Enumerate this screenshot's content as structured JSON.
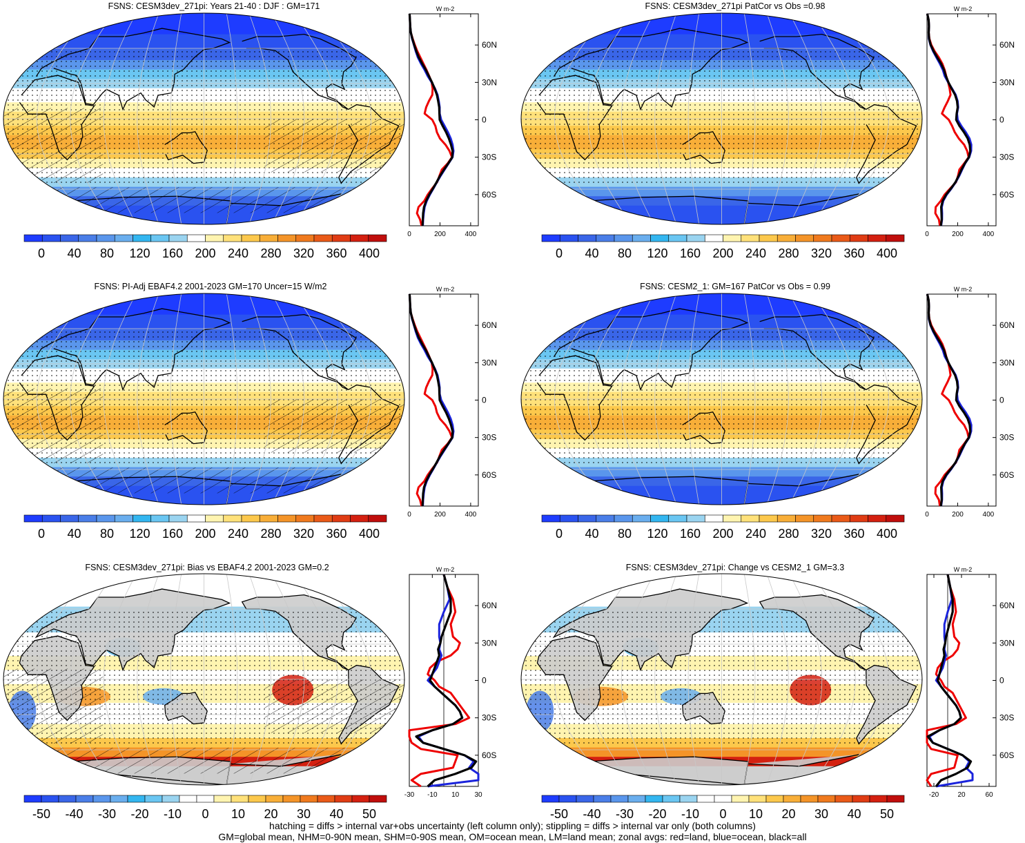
{
  "panels": [
    {
      "id": "p1",
      "title": "FSNS: CESM3dev_271pi: Years 21-40 : DJF : GM=171",
      "kind": "abs",
      "hatch": true
    },
    {
      "id": "p2",
      "title": "FSNS: CESM3dev_271pi PatCor vs Obs =0.98",
      "kind": "abs",
      "hatch": false
    },
    {
      "id": "p3",
      "title": "FSNS: PI-Adj EBAF4.2 2001-2023 GM=170 Uncer=15 W/m2",
      "kind": "abs",
      "hatch": true
    },
    {
      "id": "p4",
      "title": "FSNS: CESM2_1: GM=167 PatCor vs Obs = 0.99",
      "kind": "abs",
      "hatch": false
    },
    {
      "id": "p5",
      "title": "FSNS: CESM3dev_271pi: Bias vs EBAF4.2 2001-2023 GM=0.2",
      "kind": "diff",
      "hatch": true
    },
    {
      "id": "p6",
      "title": "FSNS: CESM3dev_271pi: Change vs CESM2_1 GM=3.3",
      "kind": "diff",
      "hatch": false
    }
  ],
  "colorbars": {
    "abs": {
      "labels": [
        "0",
        "40",
        "80",
        "120",
        "160",
        "200",
        "240",
        "280",
        "320",
        "360",
        "400"
      ],
      "colors": [
        "#1e3cff",
        "#2a52f0",
        "#3a66e8",
        "#4a7ee8",
        "#5a96ec",
        "#6aaeee",
        "#33b6f0",
        "#6ac6f2",
        "#9ad4f0",
        "#ffffff",
        "#fff4b0",
        "#ffe17a",
        "#fcc84c",
        "#f8ae38",
        "#f49428",
        "#f07a1e",
        "#ea5a18",
        "#e03c14",
        "#d42010",
        "#c00e0c"
      ]
    },
    "diff": {
      "labels": [
        "-50",
        "-40",
        "-30",
        "-20",
        "-10",
        "0",
        "10",
        "20",
        "30",
        "40",
        "50"
      ],
      "colors": [
        "#1e3cff",
        "#2a52f0",
        "#3a66e8",
        "#4a7ee8",
        "#5a96ec",
        "#6aaeee",
        "#33b6f0",
        "#6ac6f2",
        "#9ad4f0",
        "#ffffff",
        "#ffffff",
        "#fff4b0",
        "#ffe17a",
        "#fcc84c",
        "#f8ae38",
        "#f49428",
        "#f07a1e",
        "#ea5a18",
        "#e03c14",
        "#d42010",
        "#c00e0c"
      ]
    }
  },
  "profiles": {
    "unit": "W m-2",
    "lat_labels": [
      "60N",
      "30N",
      "0",
      "30S",
      "60S"
    ],
    "abs_ticks": [
      "0",
      "200",
      "400"
    ],
    "diff_left_ticks": [
      "-30",
      "-10",
      "10",
      "30"
    ],
    "diff_right_ticks": [
      "-20",
      "20",
      "60"
    ]
  },
  "chart_data": [
    {
      "type": "line",
      "title": "W m-2",
      "ylabel": "",
      "x_label_units": "W m-2",
      "lat": [
        85,
        80,
        75,
        70,
        65,
        60,
        55,
        50,
        45,
        40,
        35,
        30,
        25,
        20,
        15,
        10,
        5,
        0,
        -5,
        -10,
        -15,
        -20,
        -25,
        -30,
        -35,
        -40,
        -45,
        -50,
        -55,
        -60,
        -65,
        -70,
        -75,
        -80,
        -85
      ],
      "series": [
        {
          "name": "all",
          "color": "#000000",
          "values": [
            2,
            4,
            6,
            10,
            20,
            32,
            46,
            62,
            84,
            108,
            128,
            148,
            165,
            180,
            188,
            195,
            196,
            198,
            218,
            240,
            258,
            272,
            282,
            280,
            254,
            226,
            200,
            178,
            155,
            130,
            110,
            96,
            90,
            88,
            86
          ]
        },
        {
          "name": "land",
          "color": "#ee0000",
          "values": [
            2,
            4,
            6,
            10,
            22,
            36,
            52,
            72,
            92,
            112,
            130,
            146,
            152,
            150,
            128,
            110,
            100,
            150,
            170,
            180,
            200,
            236,
            262,
            278,
            250,
            212,
            196,
            182,
            150,
            120,
            98,
            60,
            50,
            70,
            80
          ]
        },
        {
          "name": "ocean",
          "color": "#1a23dc",
          "values": [
            2,
            4,
            6,
            10,
            18,
            30,
            42,
            56,
            76,
            100,
            120,
            146,
            168,
            184,
            192,
            198,
            198,
            208,
            230,
            252,
            270,
            282,
            288,
            282,
            256,
            230,
            204,
            180,
            158,
            134,
            114,
            100,
            94,
            90,
            88
          ]
        }
      ]
    },
    {
      "type": "line",
      "x_label_units": "W m-2",
      "lat": [
        85,
        75,
        65,
        55,
        45,
        35,
        30,
        25,
        20,
        15,
        10,
        5,
        0,
        -5,
        -10,
        -15,
        -20,
        -25,
        -30,
        -35,
        -40,
        -45,
        -50,
        -55,
        -60,
        -65,
        -70,
        -75,
        -80,
        -85
      ],
      "series": [
        {
          "name": "all",
          "color": "#000000",
          "values": [
            0,
            3,
            6,
            6,
            2,
            -2,
            -3,
            -5,
            -4,
            -6,
            -8,
            -10,
            -12,
            -8,
            -2,
            4,
            10,
            14,
            16,
            8,
            -10,
            -24,
            -18,
            0,
            18,
            28,
            24,
            10,
            -8,
            -14
          ]
        },
        {
          "name": "land",
          "color": "#ee0000",
          "values": [
            0,
            3,
            8,
            10,
            6,
            8,
            14,
            12,
            6,
            -6,
            -12,
            -14,
            -8,
            -4,
            6,
            10,
            14,
            18,
            22,
            10,
            -30,
            -40,
            -28,
            -20,
            12,
            10,
            8,
            -20,
            -28,
            -20
          ]
        },
        {
          "name": "ocean",
          "color": "#1a23dc",
          "values": [
            0,
            3,
            5,
            0,
            -4,
            -4,
            -3,
            -4,
            -2,
            -4,
            -6,
            -10,
            -14,
            -8,
            -2,
            4,
            10,
            14,
            16,
            8,
            -10,
            -22,
            -18,
            0,
            18,
            26,
            22,
            30,
            30,
            -14
          ]
        }
      ]
    }
  ]
}
